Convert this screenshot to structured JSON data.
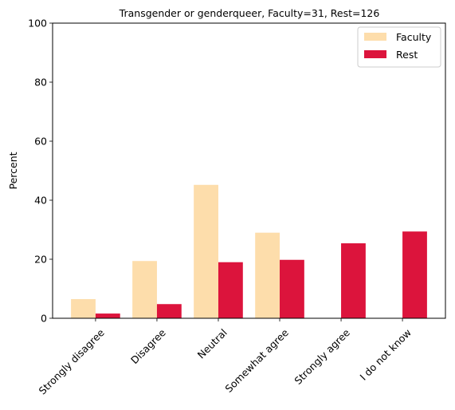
{
  "chart_data": {
    "type": "bar",
    "title": "Transgender or genderqueer, Faculty=31, Rest=126",
    "xlabel": "",
    "ylabel": "Percent",
    "ylim": [
      0,
      100
    ],
    "yticks": [
      0,
      20,
      40,
      60,
      80,
      100
    ],
    "categories": [
      "Strongly disagree",
      "Disagree",
      "Neutral",
      "Somewhat agree",
      "Strongly agree",
      "I do not know"
    ],
    "series": [
      {
        "name": "Faculty",
        "color": "#FDDDAB",
        "values": [
          6.5,
          19.4,
          45.2,
          29.0,
          0,
          0
        ]
      },
      {
        "name": "Rest",
        "color": "#DC143C",
        "values": [
          1.6,
          4.8,
          19.0,
          19.8,
          25.4,
          29.4
        ]
      }
    ],
    "legend": "top-right",
    "grid": false
  }
}
